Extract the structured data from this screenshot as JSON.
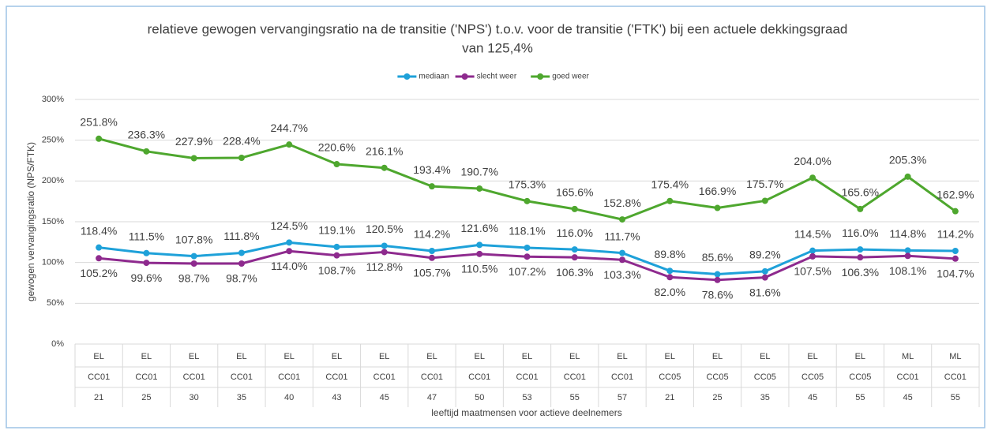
{
  "chart_data": {
    "type": "line",
    "title": [
      "relatieve gewogen vervangingsratio na de transitie ('NPS') t.o.v. voor de transitie ('FTK') bij een actuele dekkingsgraad",
      "van 125,4%"
    ],
    "y_label": "gewogen vervangingsratio (NPS/FTK)",
    "x_label": "leeftijd maatmensen voor actieve deelnemers",
    "categories": [
      [
        "EL",
        "CC01",
        "21"
      ],
      [
        "EL",
        "CC01",
        "25"
      ],
      [
        "EL",
        "CC01",
        "30"
      ],
      [
        "EL",
        "CC01",
        "35"
      ],
      [
        "EL",
        "CC01",
        "40"
      ],
      [
        "EL",
        "CC01",
        "43"
      ],
      [
        "EL",
        "CC01",
        "45"
      ],
      [
        "EL",
        "CC01",
        "47"
      ],
      [
        "EL",
        "CC01",
        "50"
      ],
      [
        "EL",
        "CC01",
        "53"
      ],
      [
        "EL",
        "CC01",
        "55"
      ],
      [
        "EL",
        "CC01",
        "57"
      ],
      [
        "EL",
        "CC05",
        "21"
      ],
      [
        "EL",
        "CC05",
        "25"
      ],
      [
        "EL",
        "CC05",
        "35"
      ],
      [
        "EL",
        "CC05",
        "45"
      ],
      [
        "EL",
        "CC05",
        "55"
      ],
      [
        "ML",
        "CC01",
        "45"
      ],
      [
        "ML",
        "CC01",
        "55"
      ]
    ],
    "series": [
      {
        "name": "mediaan",
        "color": "#1ea1d9",
        "values": [
          118.4,
          111.5,
          107.8,
          111.8,
          124.5,
          119.1,
          120.5,
          114.2,
          121.6,
          118.1,
          116.0,
          111.7,
          89.8,
          85.6,
          89.2,
          114.5,
          116.0,
          114.8,
          114.2
        ],
        "value_labels": [
          "118.4%",
          "111.5%",
          "107.8%",
          "111.8%",
          "124.5%",
          "119.1%",
          "120.5%",
          "114.2%",
          "121.6%",
          "118.1%",
          "116.0%",
          "111.7%",
          "89.8%",
          "85.6%",
          "89.2%",
          "114.5%",
          "116.0%",
          "114.8%",
          "114.2%"
        ]
      },
      {
        "name": "slecht weer",
        "color": "#8e2a8e",
        "values": [
          105.2,
          99.6,
          98.7,
          98.7,
          114.0,
          108.7,
          112.8,
          105.7,
          110.5,
          107.2,
          106.3,
          103.3,
          82.0,
          78.6,
          81.6,
          107.5,
          106.3,
          108.1,
          104.7
        ],
        "value_labels": [
          "105.2%",
          "99.6%",
          "98.7%",
          "98.7%",
          "114.0%",
          "108.7%",
          "112.8%",
          "105.7%",
          "110.5%",
          "107.2%",
          "106.3%",
          "103.3%",
          "82.0%",
          "78.6%",
          "81.6%",
          "107.5%",
          "106.3%",
          "108.1%",
          "104.7%"
        ]
      },
      {
        "name": "goed weer",
        "color": "#4ea72e",
        "values": [
          251.8,
          236.3,
          227.9,
          228.4,
          244.7,
          220.6,
          216.1,
          193.4,
          190.7,
          175.3,
          165.6,
          152.8,
          175.4,
          166.9,
          175.7,
          204.0,
          165.6,
          205.3,
          162.9
        ],
        "value_labels": [
          "251.8%",
          "236.3%",
          "227.9%",
          "228.4%",
          "244.7%",
          "220.6%",
          "216.1%",
          "193.4%",
          "190.7%",
          "175.3%",
          "165.6%",
          "152.8%",
          "175.4%",
          "166.9%",
          "175.7%",
          "204.0%",
          "165.6%",
          "205.3%",
          "162.9%"
        ]
      }
    ],
    "ylim": [
      0,
      300
    ],
    "yticks": [
      {
        "value": 0,
        "label": "0%"
      },
      {
        "value": 50,
        "label": "50%"
      },
      {
        "value": 100,
        "label": "100%"
      },
      {
        "value": 150,
        "label": "150%"
      },
      {
        "value": 200,
        "label": "200%"
      },
      {
        "value": 250,
        "label": "250%"
      },
      {
        "value": 300,
        "label": "300%"
      }
    ],
    "grid": true,
    "legend": "top"
  }
}
